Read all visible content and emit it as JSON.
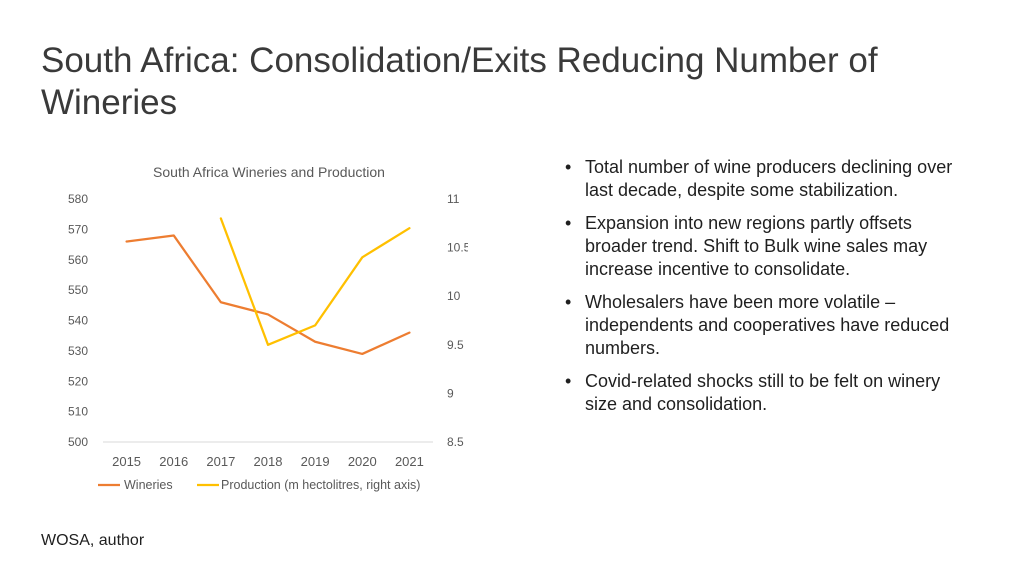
{
  "slide": {
    "title": "South Africa: Consolidation/Exits Reducing Number of Wineries",
    "bullets": [
      "Total number of wine producers declining over last decade, despite some stabilization.",
      "Expansion into new regions partly offsets broader trend. Shift to Bulk wine sales may increase incentive to consolidate.",
      "Wholesalers have been more volatile – independents and cooperatives have reduced numbers.",
      "Covid-related shocks still to be felt on winery size and consolidation."
    ],
    "source": "WOSA, author"
  },
  "chart_data": {
    "type": "line",
    "title": "South Africa Wineries and Production",
    "categories": [
      "2015",
      "2016",
      "2017",
      "2018",
      "2019",
      "2020",
      "2021"
    ],
    "series": [
      {
        "name": "Wineries",
        "axis": "left",
        "color": "#ED7D31",
        "values": [
          566,
          568,
          546,
          542,
          533,
          529,
          536
        ]
      },
      {
        "name": "Production (m hectolitres, right axis)",
        "axis": "right",
        "color": "#FFC000",
        "values": [
          null,
          null,
          10.8,
          9.5,
          9.7,
          10.4,
          10.7
        ]
      }
    ],
    "y_left": {
      "range": [
        500,
        580
      ],
      "ticks": [
        "580",
        "570",
        "560",
        "550",
        "540",
        "530",
        "520",
        "510",
        "500"
      ]
    },
    "y_right": {
      "range": [
        8.5,
        11
      ],
      "ticks": [
        "11",
        "10.5",
        "10",
        "9.5",
        "9",
        "8.5"
      ]
    },
    "legend": "bottom"
  }
}
